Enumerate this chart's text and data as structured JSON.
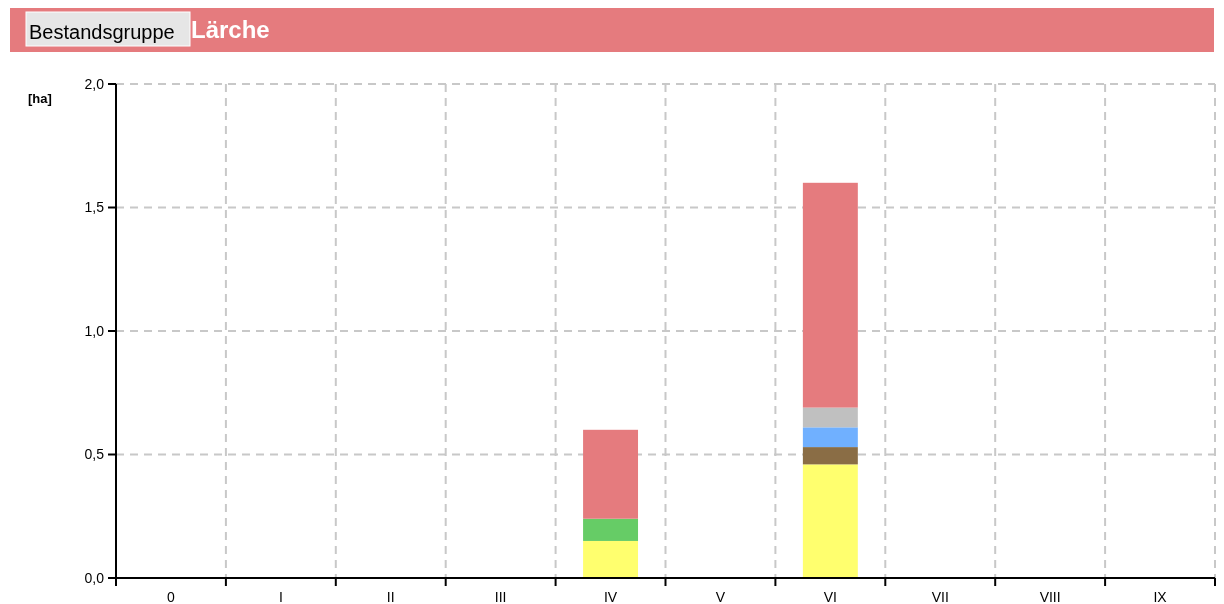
{
  "chart_data": {
    "type": "bar",
    "title": "Lärche",
    "annotations": [
      "Bestandsgruppe"
    ],
    "ylabel": "[ha]",
    "stacked": true,
    "grid": true,
    "categories": [
      "0",
      "I",
      "II",
      "III",
      "IV",
      "V",
      "VI",
      "VII",
      "VIII",
      "IX"
    ],
    "series": [
      {
        "color": "#ffff6e",
        "values": [
          0,
          0,
          0,
          0,
          0.15,
          0,
          0.46,
          0,
          0,
          0
        ]
      },
      {
        "color": "#66cc66",
        "values": [
          0,
          0,
          0,
          0,
          0.09,
          0,
          0,
          0,
          0,
          0
        ]
      },
      {
        "color": "#8a6d45",
        "values": [
          0,
          0,
          0,
          0,
          0,
          0,
          0.07,
          0,
          0,
          0
        ]
      },
      {
        "color": "#70b0ff",
        "values": [
          0,
          0,
          0,
          0,
          0,
          0,
          0.08,
          0,
          0,
          0
        ]
      },
      {
        "color": "#c0c0c0",
        "values": [
          0,
          0,
          0,
          0,
          0,
          0,
          0.08,
          0,
          0,
          0
        ]
      },
      {
        "color": "#e57b7e",
        "values": [
          0,
          0,
          0,
          0,
          0.36,
          0,
          0.91,
          0,
          0,
          0
        ]
      }
    ],
    "ylim": [
      0,
      2
    ],
    "yticks": [
      {
        "value": 0,
        "label": "0,0"
      },
      {
        "value": 0.5,
        "label": "0,5"
      },
      {
        "value": 1,
        "label": "1,0"
      },
      {
        "value": 1.5,
        "label": "1,5"
      },
      {
        "value": 2,
        "label": "2,0"
      }
    ]
  }
}
